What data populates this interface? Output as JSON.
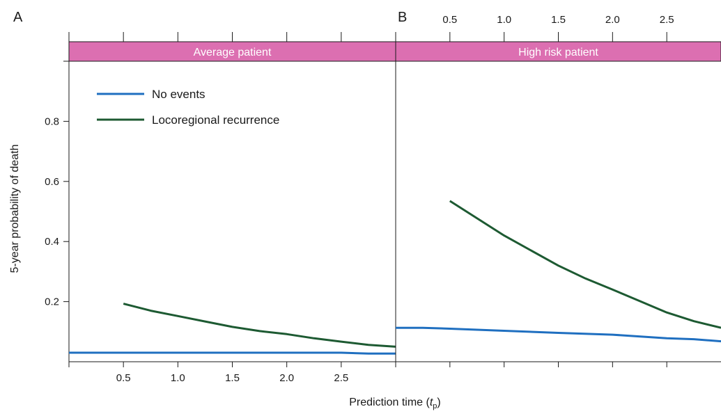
{
  "figure": {
    "panel_letters": [
      "A",
      "B"
    ],
    "strip_color": "#dc6fb1",
    "line_colors": {
      "No events": "#1f6fc0",
      "Locoregional recurrence": "#1d5a32"
    }
  },
  "chart_data": [
    {
      "panel": "A",
      "type": "line",
      "title": "Average patient",
      "xlabel": "Prediction time (t_p)",
      "ylabel": "5-year probability of death",
      "xlim": [
        0,
        3
      ],
      "ylim": [
        0,
        1
      ],
      "yticks": [
        0.2,
        0.4,
        0.6,
        0.8
      ],
      "xticks": [
        0.5,
        1.0,
        1.5,
        2.0,
        2.5
      ],
      "legend": "top-left",
      "series": [
        {
          "name": "No events",
          "x": [
            0,
            0.5,
            1.0,
            1.5,
            2.0,
            2.5,
            2.75,
            3.0
          ],
          "y": [
            0.03,
            0.03,
            0.03,
            0.03,
            0.03,
            0.03,
            0.027,
            0.027
          ]
        },
        {
          "name": "Locoregional recurrence",
          "x": [
            0.5,
            0.75,
            1.0,
            1.25,
            1.5,
            1.75,
            2.0,
            2.25,
            2.5,
            2.75,
            3.0
          ],
          "y": [
            0.193,
            0.17,
            0.152,
            0.134,
            0.116,
            0.102,
            0.092,
            0.078,
            0.067,
            0.056,
            0.05
          ]
        }
      ]
    },
    {
      "panel": "B",
      "type": "line",
      "title": "High risk patient",
      "xlim": [
        0,
        3
      ],
      "ylim": [
        0,
        1
      ],
      "xticks": [
        0.5,
        1.0,
        1.5,
        2.0,
        2.5
      ],
      "series": [
        {
          "name": "No events",
          "x": [
            0,
            0.25,
            0.5,
            1.0,
            1.5,
            2.0,
            2.5,
            2.75,
            3.0
          ],
          "y": [
            0.113,
            0.113,
            0.11,
            0.103,
            0.096,
            0.09,
            0.078,
            0.075,
            0.068
          ]
        },
        {
          "name": "Locoregional recurrence",
          "x": [
            0.5,
            1.0,
            1.25,
            1.5,
            1.75,
            2.0,
            2.25,
            2.5,
            2.75,
            3.0
          ],
          "y": [
            0.535,
            0.42,
            0.37,
            0.32,
            0.277,
            0.24,
            0.202,
            0.164,
            0.135,
            0.113
          ]
        }
      ]
    }
  ],
  "labels": {
    "tick_labels": [
      "0.5",
      "1.0",
      "1.5",
      "2.0",
      "2.5"
    ],
    "y_tick_labels": [
      "0.2",
      "0.4",
      "0.6",
      "0.8"
    ]
  }
}
